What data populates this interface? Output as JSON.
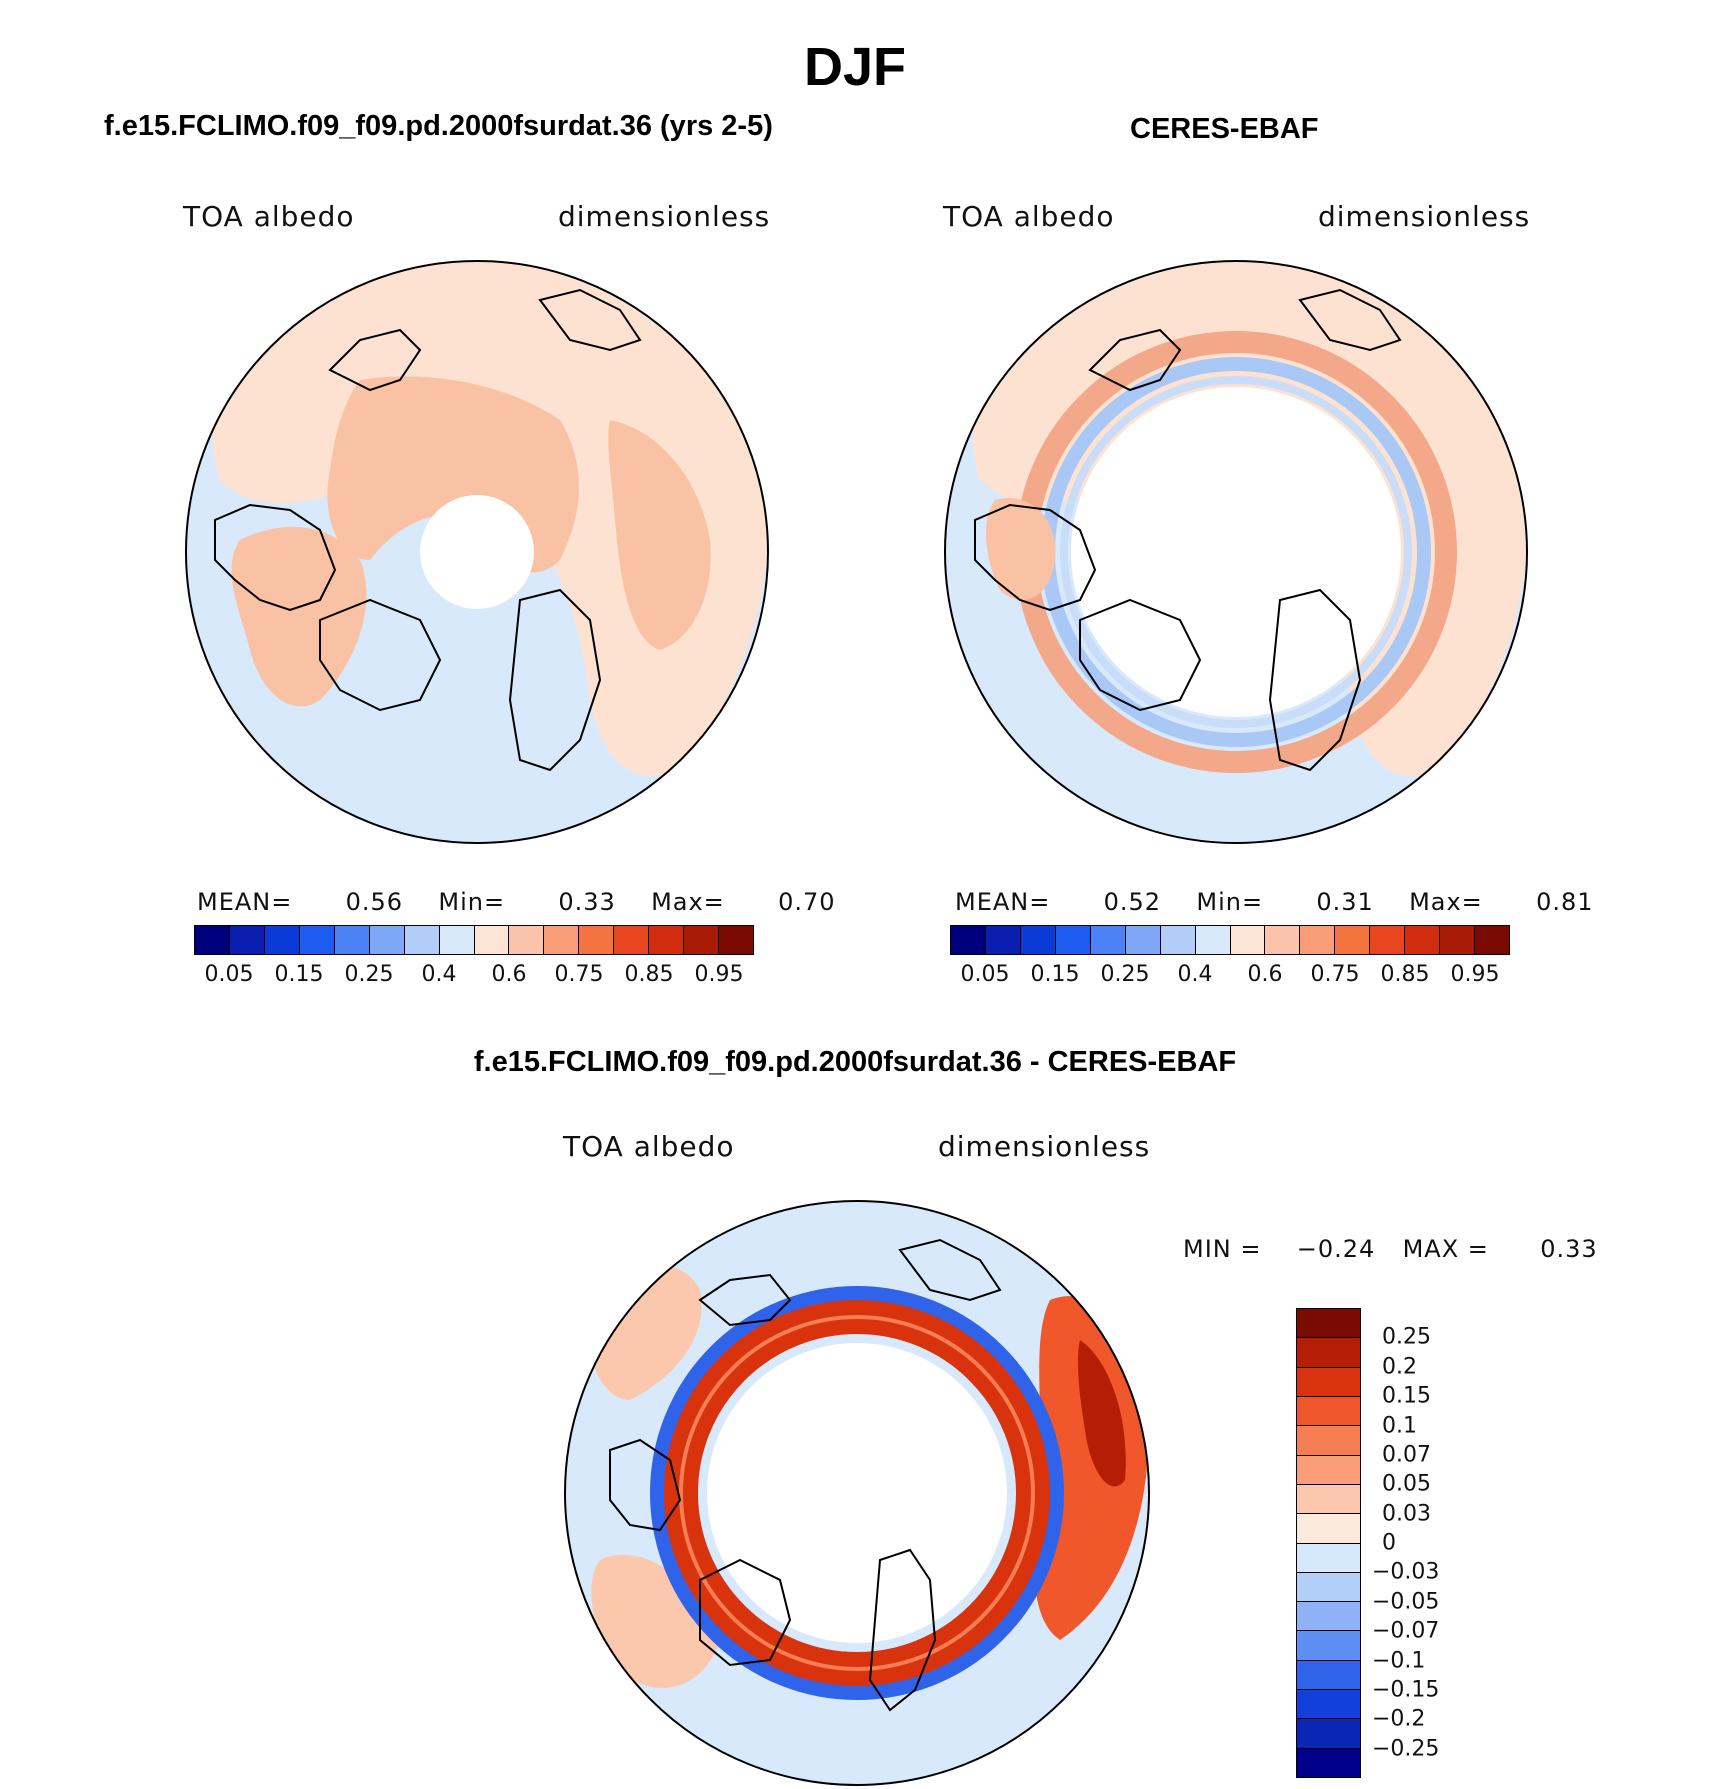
{
  "title": "DJF",
  "panels": [
    {
      "id": "model",
      "heading": "f.e15.FCLIMO.f09_f09.pd.2000fsurdat.36 (yrs 2-5)",
      "left_label": "TOA albedo",
      "right_label": "dimensionless",
      "stats": {
        "mean_label": "MEAN=",
        "mean": "0.56",
        "min_label": "Min=",
        "min": "0.33",
        "max_label": "Max=",
        "max": "0.70"
      }
    },
    {
      "id": "obs",
      "heading": "CERES-EBAF",
      "left_label": "TOA albedo",
      "right_label": "dimensionless",
      "stats": {
        "mean_label": "MEAN=",
        "mean": "0.52",
        "min_label": "Min=",
        "min": "0.31",
        "max_label": "Max=",
        "max": "0.81"
      }
    }
  ],
  "horizontal_colorbar": {
    "colors": [
      "#00007f",
      "#0a1fb0",
      "#0a3bd9",
      "#1e5cf0",
      "#4c82f5",
      "#7fa7f7",
      "#b1cdf8",
      "#d7e9fb",
      "#fde5d6",
      "#fbc3aa",
      "#f89d78",
      "#f4733f",
      "#e8461f",
      "#d02c0d",
      "#a81b06",
      "#7a0a02"
    ],
    "tick_labels": [
      "0.05",
      "0.15",
      "0.25",
      "0.4",
      "0.6",
      "0.75",
      "0.85",
      "0.95"
    ]
  },
  "difference": {
    "heading": "f.e15.FCLIMO.f09_f09.pd.2000fsurdat.36 - CERES-EBAF",
    "left_label": "TOA albedo",
    "right_label": "dimensionless",
    "min_label": "MIN =",
    "min": "−0.24",
    "max_label": "MAX =",
    "max": "0.33",
    "colorbar": {
      "colors": [
        "#7a0a02",
        "#b51e05",
        "#d9330d",
        "#f0572a",
        "#f77e52",
        "#fa9e79",
        "#fbc8ad",
        "#fdeadf",
        "#d6e8fb",
        "#b2cffa",
        "#8fb2f6",
        "#5d8ef2",
        "#2f63ea",
        "#1340d8",
        "#0a26b5",
        "#00008b"
      ],
      "tick_labels": [
        "0.25",
        "0.2",
        "0.15",
        "0.1",
        "0.07",
        "0.05",
        "0.03",
        "0",
        "−0.03",
        "−0.05",
        "−0.07",
        "−0.1",
        "−0.15",
        "−0.2",
        "−0.25"
      ]
    }
  },
  "colors": {
    "light_blue": "#d7e9fb",
    "light_salmon": "#fde2d2",
    "salmon": "#f9c2a4",
    "blue_mid": "#a9c8f5",
    "red_strong": "#d9330d",
    "blue_strong": "#1e5cf0"
  }
}
